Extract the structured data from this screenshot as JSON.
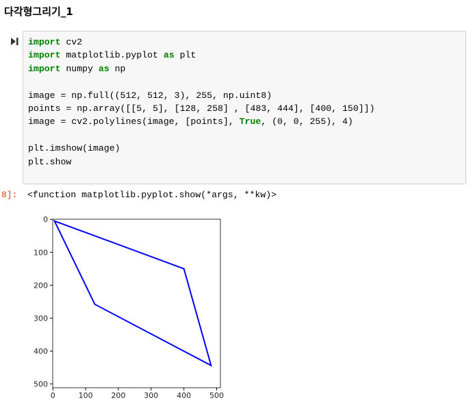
{
  "header": {
    "title": "다각형그리기_1"
  },
  "code_cell": {
    "blocks": [
      [
        [
          {
            "text": "import",
            "color": "#008000"
          },
          {
            "text": " cv2"
          }
        ],
        [
          {
            "text": "import",
            "color": "#008000"
          },
          {
            "text": " matplotlib.pyplot "
          },
          {
            "text": "as",
            "color": "#008000"
          },
          {
            "text": " plt"
          }
        ],
        [
          {
            "text": "import",
            "color": "#008000"
          },
          {
            "text": " numpy "
          },
          {
            "text": "as",
            "color": "#008000"
          },
          {
            "text": " np"
          }
        ]
      ],
      [
        [
          {
            "text": "image = np.full((512, 512, 3), 255, np.uint8)"
          }
        ],
        [
          {
            "text": "points = np.array([[5, 5], [128, 258] , [483, 444], [400, 150]])"
          }
        ],
        [
          {
            "text": "image = cv2.polylines(image, [points], "
          },
          {
            "text": "True",
            "color": "#008000"
          },
          {
            "text": ", (0, 0, 255), 4)"
          }
        ]
      ],
      [
        [
          {
            "text": "plt.imshow(image)"
          }
        ],
        [
          {
            "text": "plt.show"
          }
        ]
      ]
    ]
  },
  "output": {
    "prompt": "8]:",
    "text": "<function matplotlib.pyplot.show(*args, **kw)>"
  },
  "chart_data": {
    "type": "polygon",
    "color": "#0000ff",
    "x": [
      5,
      128,
      483,
      400
    ],
    "values": [
      5,
      258,
      444,
      150
    ],
    "xlim": [
      -0.5,
      511.5
    ],
    "ylim": [
      511.5,
      -0.5
    ],
    "xticks": [
      0,
      100,
      200,
      300,
      400,
      500
    ],
    "yticks": [
      0,
      100,
      200,
      300,
      400,
      500
    ]
  }
}
